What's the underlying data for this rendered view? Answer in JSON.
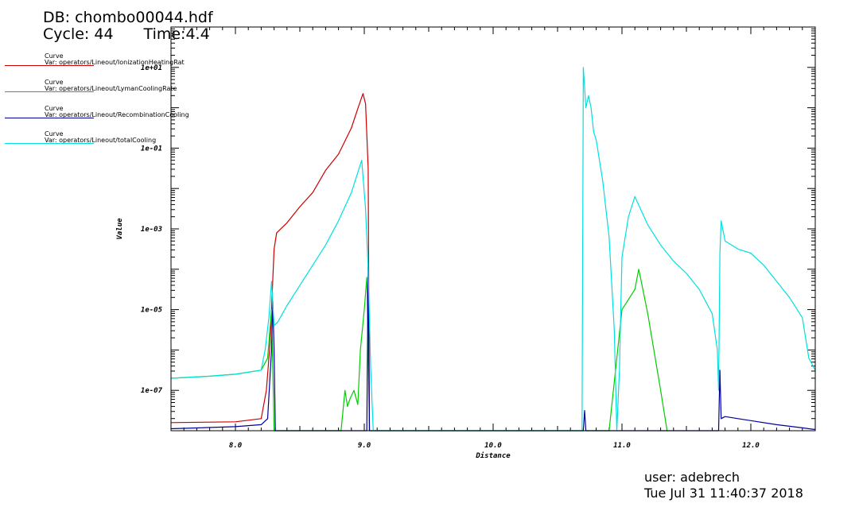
{
  "header": {
    "db": "DB: chombo00044.hdf",
    "cycle": "Cycle: 44",
    "time": "Time:4.4"
  },
  "legend": [
    {
      "title": "Curve",
      "var": "Var: operators/Lineout/IonizationHeatingRat",
      "color": "#cc0000"
    },
    {
      "title": "Curve",
      "var": "Var: operators/Lineout/LymanCoolingRate",
      "color": "#00cc00"
    },
    {
      "title": "Curve",
      "var": "Var: operators/Lineout/RecombinationCooling",
      "color": "#000099"
    },
    {
      "title": "Curve",
      "var": "Var: operators/Lineout/totalCooling",
      "color": "#00e0e0"
    }
  ],
  "footer": {
    "user": "user: adebrech",
    "date": "Tue Jul 31 11:40:37 2018"
  },
  "chart_data": {
    "type": "line",
    "xlabel": "Distance",
    "ylabel": "Value",
    "xlim": [
      7.5,
      12.5
    ],
    "ylim_log10": [
      -8.0,
      2.0
    ],
    "yscale": "log",
    "x_ticks": [
      "8.0",
      "9.0",
      "10.0",
      "11.0",
      "12.0"
    ],
    "y_tick_labels": [
      "1e-07",
      "1e-05",
      "1e-03",
      "1e-01",
      "1e+01"
    ],
    "grid": false,
    "series": [
      {
        "name": "IonizationHeatingRat",
        "color": "#cc0000",
        "x": [
          7.5,
          8.0,
          8.2,
          8.24,
          8.27,
          8.3,
          8.32,
          8.4,
          8.5,
          8.6,
          8.7,
          8.8,
          8.9,
          8.95,
          8.99,
          9.01,
          9.03,
          9.04
        ],
        "log10y": [
          -7.8,
          -7.78,
          -7.7,
          -7.0,
          -5.8,
          -3.5,
          -3.1,
          -2.85,
          -2.45,
          -2.1,
          -1.55,
          -1.15,
          -0.5,
          -0.02,
          0.35,
          0.1,
          -1.5,
          -8.0
        ]
      },
      {
        "name": "LymanCoolingRate",
        "color": "#00cc00",
        "x": [
          7.5,
          7.8,
          8.0,
          8.2,
          8.25,
          8.28,
          8.3,
          8.31,
          8.32,
          8.82,
          8.85,
          8.87,
          8.89,
          8.92,
          8.95,
          8.97,
          9.0,
          9.02,
          9.03,
          9.04,
          10.9,
          11.0,
          11.1,
          11.13,
          11.2,
          11.3,
          11.35
        ],
        "log10y": [
          -6.7,
          -6.65,
          -6.6,
          -6.5,
          -6.2,
          -5.0,
          -8.0,
          -8.0,
          -8.0,
          -8.0,
          -7.0,
          -7.4,
          -7.2,
          -7.0,
          -7.35,
          -6.0,
          -5.0,
          -4.2,
          -6.0,
          -8.0,
          -8.0,
          -5.0,
          -4.5,
          -4.0,
          -5.1,
          -7.0,
          -8.0
        ]
      },
      {
        "name": "RecombinationCooling",
        "color": "#000099",
        "x": [
          7.5,
          8.0,
          8.2,
          8.25,
          8.28,
          8.29,
          8.3,
          8.31,
          9.02,
          9.03,
          9.04,
          10.7,
          10.71,
          10.72,
          11.75,
          11.76,
          11.77,
          11.8,
          11.9,
          12.0,
          12.2,
          12.4,
          12.5
        ],
        "log10y": [
          -7.95,
          -7.9,
          -7.85,
          -7.7,
          -6.0,
          -4.8,
          -6.0,
          -8.0,
          -8.0,
          -3.9,
          -8.0,
          -8.0,
          -7.5,
          -8.0,
          -8.0,
          -6.5,
          -7.7,
          -7.65,
          -7.7,
          -7.75,
          -7.85,
          -7.93,
          -7.97
        ]
      },
      {
        "name": "totalCooling",
        "color": "#00e0e0",
        "x": [
          7.5,
          7.8,
          8.0,
          8.2,
          8.23,
          8.26,
          8.28,
          8.3,
          8.33,
          8.4,
          8.5,
          8.6,
          8.7,
          8.8,
          8.9,
          8.95,
          8.98,
          9.01,
          9.03,
          9.05,
          9.07,
          9.1,
          10.69,
          10.7,
          10.72,
          10.74,
          10.76,
          10.78,
          10.8,
          10.85,
          10.9,
          10.94,
          10.96,
          10.98,
          11.0,
          11.05,
          11.1,
          11.2,
          11.3,
          11.4,
          11.5,
          11.6,
          11.7,
          11.74,
          11.75,
          11.76,
          11.77,
          11.8,
          11.9,
          12.0,
          12.1,
          12.2,
          12.3,
          12.4,
          12.45,
          12.5
        ],
        "log10y": [
          -6.7,
          -6.65,
          -6.6,
          -6.5,
          -6.0,
          -5.2,
          -4.3,
          -5.4,
          -5.3,
          -4.9,
          -4.4,
          -3.9,
          -3.4,
          -2.8,
          -2.1,
          -1.6,
          -1.3,
          -2.5,
          -4.0,
          -6.5,
          -8.0,
          -8.0,
          -8.0,
          1.0,
          0.0,
          0.3,
          0.0,
          -0.6,
          -0.8,
          -1.8,
          -3.2,
          -5.5,
          -8.0,
          -6.5,
          -3.7,
          -2.7,
          -2.2,
          -2.9,
          -3.4,
          -3.8,
          -4.1,
          -4.5,
          -5.1,
          -6.0,
          -7.0,
          -3.6,
          -2.8,
          -3.3,
          -3.5,
          -3.6,
          -3.9,
          -4.3,
          -4.7,
          -5.2,
          -6.2,
          -6.5
        ]
      }
    ]
  }
}
